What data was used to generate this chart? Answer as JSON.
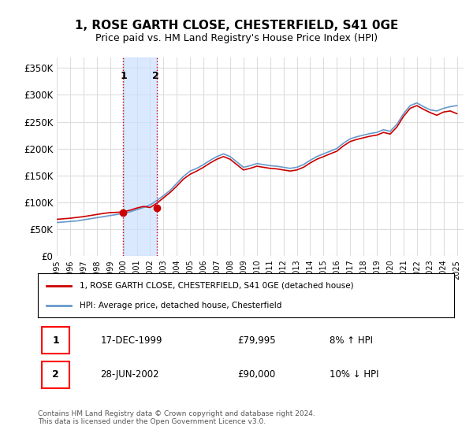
{
  "title": "1, ROSE GARTH CLOSE, CHESTERFIELD, S41 0GE",
  "subtitle": "Price paid vs. HM Land Registry's House Price Index (HPI)",
  "ylabel_ticks": [
    "£0",
    "£50K",
    "£100K",
    "£150K",
    "£200K",
    "£250K",
    "£300K",
    "£350K"
  ],
  "ylim": [
    0,
    370000
  ],
  "yticks": [
    0,
    50000,
    100000,
    150000,
    200000,
    250000,
    300000,
    350000
  ],
  "red_line_label": "1, ROSE GARTH CLOSE, CHESTERFIELD, S41 0GE (detached house)",
  "blue_line_label": "HPI: Average price, detached house, Chesterfield",
  "transaction1_label": "1",
  "transaction1_date": "17-DEC-1999",
  "transaction1_price": "£79,995",
  "transaction1_hpi": "8% ↑ HPI",
  "transaction2_label": "2",
  "transaction2_date": "28-JUN-2002",
  "transaction2_price": "£90,000",
  "transaction2_hpi": "10% ↓ HPI",
  "footer": "Contains HM Land Registry data © Crown copyright and database right 2024.\nThis data is licensed under the Open Government Licence v3.0.",
  "red_color": "#cc0000",
  "blue_color": "#6699cc",
  "shade_color": "#cce0ff",
  "grid_color": "#dddddd",
  "background_color": "#ffffff"
}
